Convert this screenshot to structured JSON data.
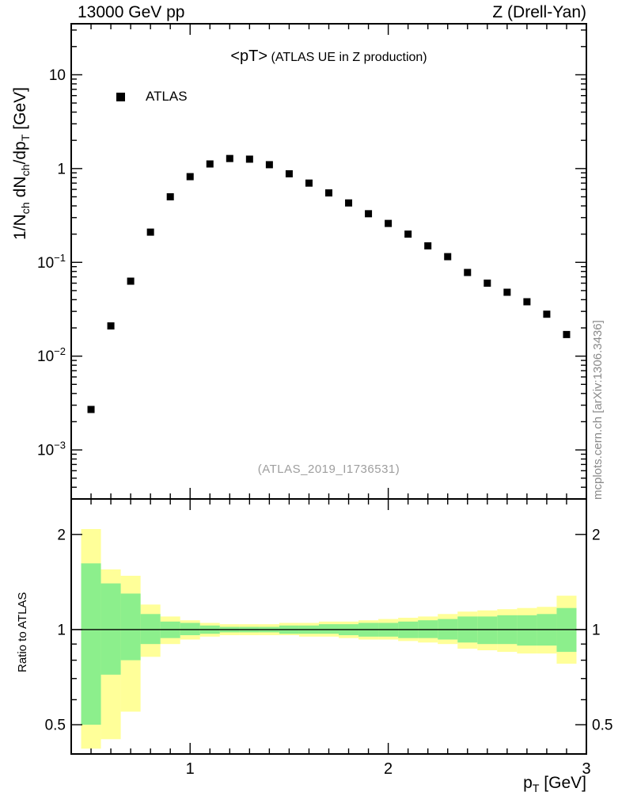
{
  "header": {
    "left_title": "13000 GeV pp",
    "right_title": "Z (Drell-Yan)"
  },
  "plot": {
    "title_main": "<pT>",
    "title_sub": " (ATLAS UE in Z production)",
    "watermark": "(ATLAS_2019_I1736531)",
    "side_credit": "mcplots.cern.ch [arXiv:1306.3436]",
    "legend": {
      "label": "ATLAS",
      "marker": "filled-square",
      "marker_color": "#000000"
    }
  },
  "axis_labels": {
    "y_parts": [
      "1/N",
      "ch",
      " dN",
      "ch",
      "/dp",
      "T",
      " [GeV]"
    ],
    "x_parts": [
      "p",
      "T",
      " [GeV]"
    ],
    "ratio_y": "Ratio to ATLAS"
  },
  "chart_data": {
    "type": "scatter",
    "title": "<pT> (ATLAS UE in Z production)",
    "xlabel": "pT [GeV]",
    "ylabel": "1/Nch dNch/dpT [GeV]",
    "x_scale": "linear",
    "y_scale": "log",
    "xlim": [
      0.4,
      3.0
    ],
    "ylim": [
      0.0003,
      35
    ],
    "grid": false,
    "x_ticks": [
      {
        "value": 1,
        "label": "1"
      },
      {
        "value": 2,
        "label": "2"
      },
      {
        "value": 3,
        "label": "3"
      }
    ],
    "y_ticks": [
      {
        "value": 10,
        "label": "10"
      },
      {
        "value": 1,
        "label": "1"
      },
      {
        "value": 0.1,
        "base": "10",
        "exp": "−1"
      },
      {
        "value": 0.01,
        "base": "10",
        "exp": "−2"
      },
      {
        "value": 0.001,
        "base": "10",
        "exp": "−3"
      }
    ],
    "series": [
      {
        "name": "ATLAS",
        "marker": "filled-square",
        "color": "#000000",
        "x": [
          0.5,
          0.6,
          0.7,
          0.8,
          0.9,
          1.0,
          1.1,
          1.2,
          1.3,
          1.4,
          1.5,
          1.6,
          1.7,
          1.8,
          1.9,
          2.0,
          2.1,
          2.2,
          2.3,
          2.4,
          2.5,
          2.6,
          2.7,
          2.8,
          2.9
        ],
        "y": [
          0.0027,
          0.021,
          0.063,
          0.21,
          0.5,
          0.82,
          1.12,
          1.28,
          1.26,
          1.1,
          0.88,
          0.7,
          0.55,
          0.43,
          0.33,
          0.26,
          0.2,
          0.15,
          0.115,
          0.078,
          0.06,
          0.048,
          0.038,
          0.028,
          0.017
        ]
      }
    ],
    "ratio_panel": {
      "ylabel": "Ratio to ATLAS",
      "scale": "log",
      "ylim": [
        0.404,
        2.59
      ],
      "reference_line": 1,
      "y_ticks": [
        {
          "value": 2,
          "label": "2"
        },
        {
          "value": 1,
          "label": "1"
        },
        {
          "value": 0.5,
          "label": "0.5"
        }
      ],
      "y_minor": [
        0.6,
        0.7,
        0.8,
        0.9
      ],
      "bands": {
        "bin_width": 0.1,
        "yellow_color": "#ffff99",
        "green_color": "#8cef8c",
        "x": [
          0.5,
          0.6,
          0.7,
          0.8,
          0.9,
          1.0,
          1.1,
          1.2,
          1.3,
          1.4,
          1.5,
          1.6,
          1.7,
          1.8,
          1.9,
          2.0,
          2.1,
          2.2,
          2.3,
          2.4,
          2.5,
          2.6,
          2.7,
          2.8,
          2.9
        ],
        "yellow_lo": [
          0.42,
          0.45,
          0.55,
          0.82,
          0.9,
          0.93,
          0.95,
          0.96,
          0.96,
          0.96,
          0.96,
          0.95,
          0.95,
          0.94,
          0.93,
          0.93,
          0.92,
          0.91,
          0.9,
          0.87,
          0.86,
          0.85,
          0.84,
          0.84,
          0.78
        ],
        "yellow_hi": [
          2.08,
          1.55,
          1.48,
          1.2,
          1.1,
          1.07,
          1.05,
          1.04,
          1.04,
          1.04,
          1.05,
          1.05,
          1.06,
          1.06,
          1.07,
          1.08,
          1.09,
          1.1,
          1.12,
          1.14,
          1.15,
          1.16,
          1.17,
          1.18,
          1.28
        ],
        "green_lo": [
          0.5,
          0.72,
          0.8,
          0.9,
          0.94,
          0.96,
          0.97,
          0.98,
          0.98,
          0.98,
          0.97,
          0.97,
          0.97,
          0.96,
          0.95,
          0.95,
          0.94,
          0.94,
          0.93,
          0.91,
          0.9,
          0.9,
          0.89,
          0.89,
          0.85
        ],
        "green_hi": [
          1.62,
          1.4,
          1.3,
          1.12,
          1.06,
          1.05,
          1.03,
          1.02,
          1.02,
          1.02,
          1.03,
          1.03,
          1.04,
          1.04,
          1.05,
          1.05,
          1.06,
          1.07,
          1.08,
          1.1,
          1.1,
          1.11,
          1.11,
          1.12,
          1.17
        ]
      }
    }
  }
}
